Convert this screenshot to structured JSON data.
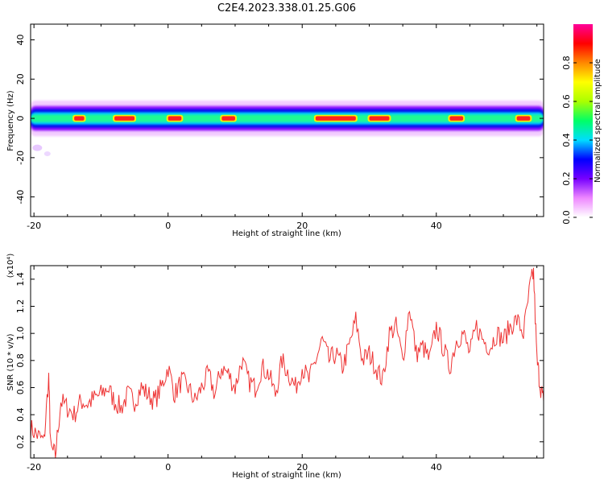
{
  "title": "C2E4.2023.338.01.25.G06",
  "chart_data": [
    {
      "type": "heatmap",
      "xlabel": "Height of straight line (km)",
      "ylabel": "Frequency (Hz)",
      "xlim": [
        -20.5,
        56
      ],
      "ylim": [
        -50,
        48
      ],
      "xticks": [
        -20,
        0,
        20,
        40
      ],
      "yticks": [
        -40,
        -20,
        0,
        20,
        40
      ],
      "band": {
        "center_hz": 0,
        "half_width_hz": 3.5
      },
      "high_segments_km": [
        [
          -14,
          -12.5
        ],
        [
          -8,
          -5
        ],
        [
          0,
          2
        ],
        [
          8,
          10
        ],
        [
          22,
          28
        ],
        [
          30,
          33
        ],
        [
          42,
          44
        ],
        [
          52,
          54
        ]
      ],
      "colorbar": {
        "label": "Normalized spectral amplitude",
        "range": [
          0,
          1
        ],
        "ticks": [
          0.0,
          0.2,
          0.4,
          0.6,
          0.8
        ],
        "colors": [
          "#ffffff",
          "#ee88ff",
          "#7700ff",
          "#0000ff",
          "#00ddff",
          "#00ff66",
          "#aaff00",
          "#ffff00",
          "#ff8800",
          "#ff0000",
          "#ff0099"
        ]
      }
    },
    {
      "type": "line",
      "xlabel": "Height of straight line (km)",
      "ylabel": "SNR (10 * v/v)",
      "y_exponent": "(x10⁴)",
      "xlim": [
        -20.5,
        56
      ],
      "ylim": [
        0.08,
        1.5
      ],
      "xticks": [
        -20,
        0,
        20,
        40
      ],
      "yticks": [
        0.2,
        0.4,
        0.6,
        0.8,
        1.0,
        1.2,
        1.4
      ],
      "line_color": "#ee3333",
      "x": [
        -20.5,
        -19.5,
        -18.5,
        -17.8,
        -17.5,
        -16.8,
        -16,
        -15,
        -14,
        -13,
        -12,
        -11,
        -10,
        -9,
        -8,
        -7,
        -6,
        -5,
        -4,
        -3,
        -2,
        -1,
        0,
        1,
        2,
        3,
        4,
        5,
        6,
        7,
        8,
        9,
        10,
        11,
        12,
        13,
        14,
        15,
        16,
        17,
        18,
        19,
        20,
        21,
        22,
        23,
        24,
        25,
        26,
        27,
        28,
        29,
        30,
        31,
        32,
        33,
        34,
        35,
        36,
        37,
        38,
        39,
        40,
        41,
        42,
        43,
        44,
        45,
        46,
        47,
        48,
        49,
        50,
        51,
        52,
        53,
        54,
        54.5,
        55,
        55.5,
        56
      ],
      "values": [
        0.3,
        0.25,
        0.2,
        0.68,
        0.15,
        0.1,
        0.5,
        0.45,
        0.4,
        0.5,
        0.48,
        0.52,
        0.55,
        0.6,
        0.5,
        0.45,
        0.55,
        0.5,
        0.6,
        0.55,
        0.5,
        0.6,
        0.75,
        0.55,
        0.65,
        0.6,
        0.5,
        0.6,
        0.7,
        0.55,
        0.75,
        0.7,
        0.6,
        0.8,
        0.65,
        0.6,
        0.75,
        0.7,
        0.55,
        0.8,
        0.7,
        0.6,
        0.75,
        0.65,
        0.8,
        0.95,
        0.8,
        0.85,
        0.75,
        0.9,
        1.1,
        0.8,
        0.85,
        0.75,
        0.65,
        1.0,
        1.05,
        0.8,
        1.2,
        0.85,
        0.9,
        0.8,
        1.05,
        0.9,
        0.75,
        0.95,
        1.0,
        0.85,
        1.05,
        0.95,
        0.9,
        1.0,
        0.95,
        1.05,
        1.1,
        1.0,
        1.35,
        1.45,
        0.8,
        0.62,
        0.5
      ]
    }
  ]
}
